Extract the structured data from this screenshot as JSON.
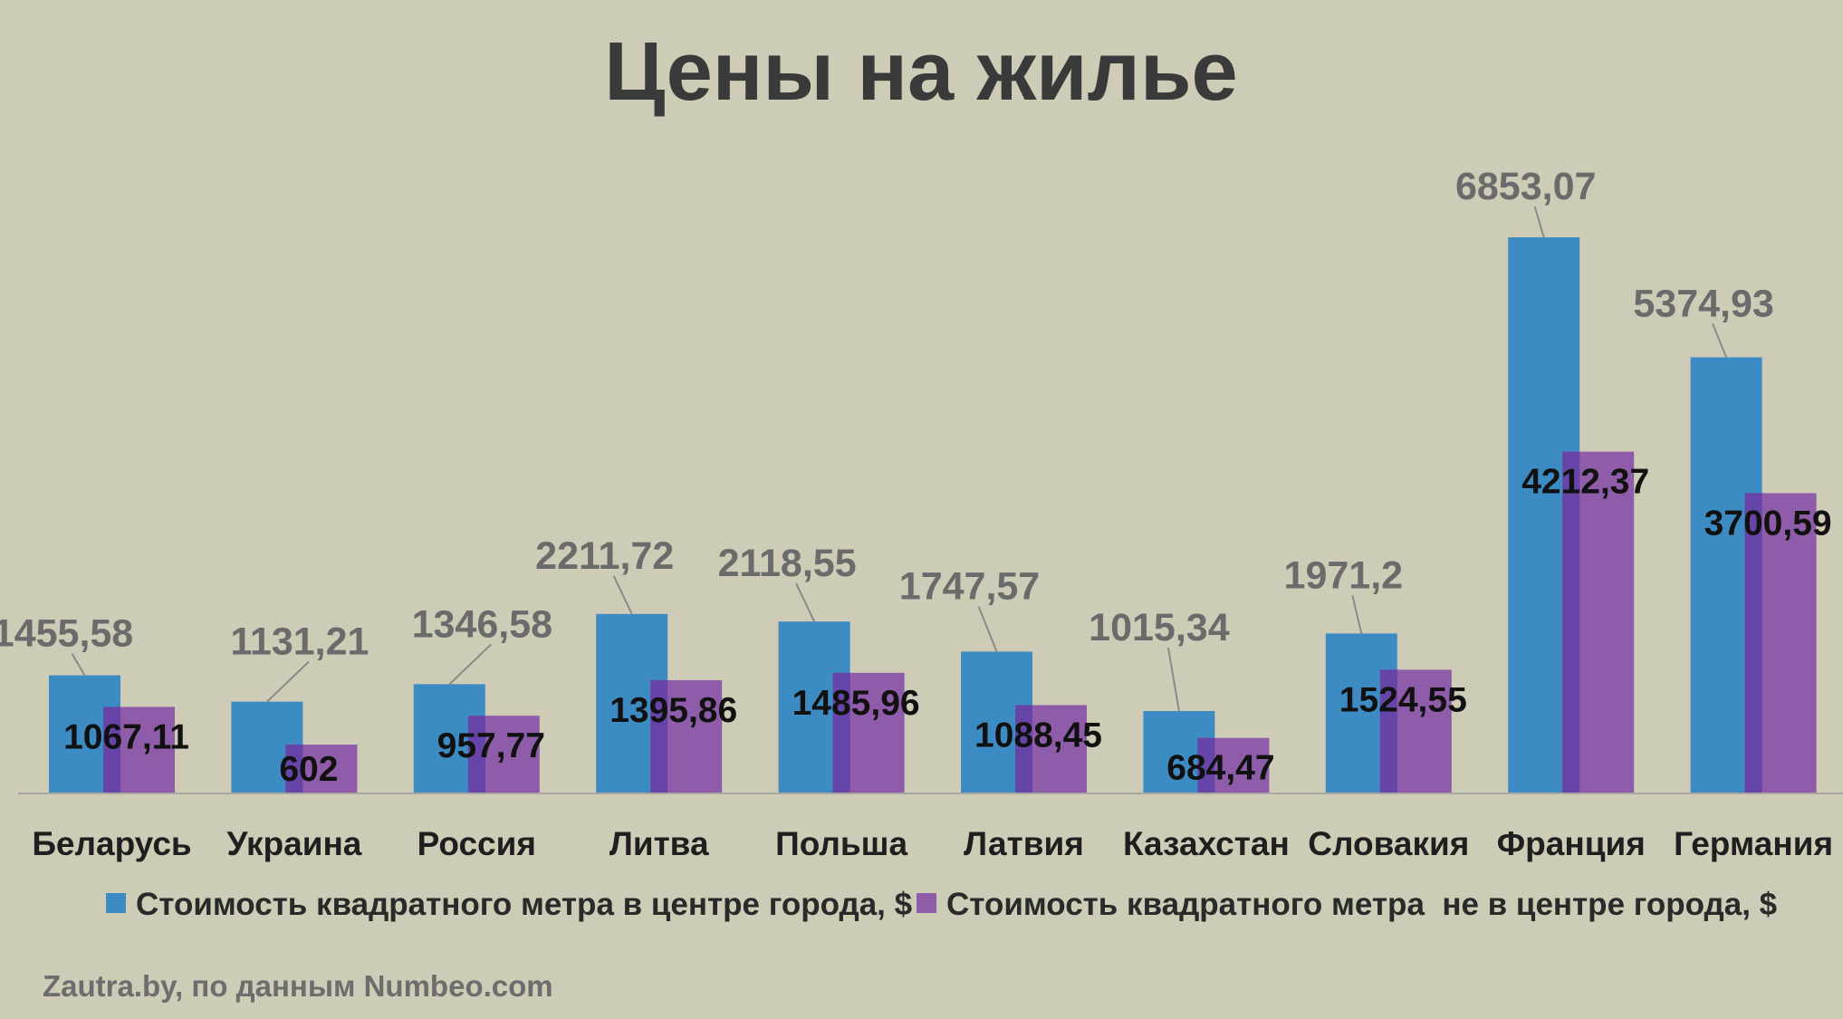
{
  "chart_data": {
    "type": "bar",
    "title": "Цены на жилье",
    "categories": [
      "Беларусь",
      "Украина",
      "Россия",
      "Литва",
      "Польша",
      "Латвия",
      "Казахстан",
      "Словакия",
      "Франция",
      "Германия"
    ],
    "series": [
      {
        "name": "Стоимость квадратного метра в центре города, $",
        "color": "#3d8bc3",
        "values": [
          1455.58,
          1131.21,
          1346.58,
          2211.72,
          2118.55,
          1747.57,
          1015.34,
          1971.2,
          6853.07,
          5374.93
        ],
        "labels": [
          "1455,58",
          "1131,21",
          "1346,58",
          "2211,72",
          "2118,55",
          "1747,57",
          "1015,34",
          "1971,2",
          "6853,07",
          "5374,93"
        ]
      },
      {
        "name": "Стоимость квадратного метра  не в центре города, $",
        "color": "#8e5ca8",
        "values": [
          1067.11,
          602,
          957.77,
          1395.86,
          1485.96,
          1088.45,
          684.47,
          1524.55,
          4212.37,
          3700.59
        ],
        "labels": [
          "1067,11",
          "602",
          "957,77",
          "1395,86",
          "1485,96",
          "1088,45",
          "684,47",
          "1524,55",
          "4212,37",
          "3700,59"
        ]
      }
    ],
    "ylim": [
      0,
      7000
    ],
    "grid": false,
    "legend_position": "bottom",
    "source": "Zautra.by, по данным Numbeo.com"
  },
  "colors": {
    "background": "#cecbb7",
    "bar_overlap": "#6644a8"
  }
}
